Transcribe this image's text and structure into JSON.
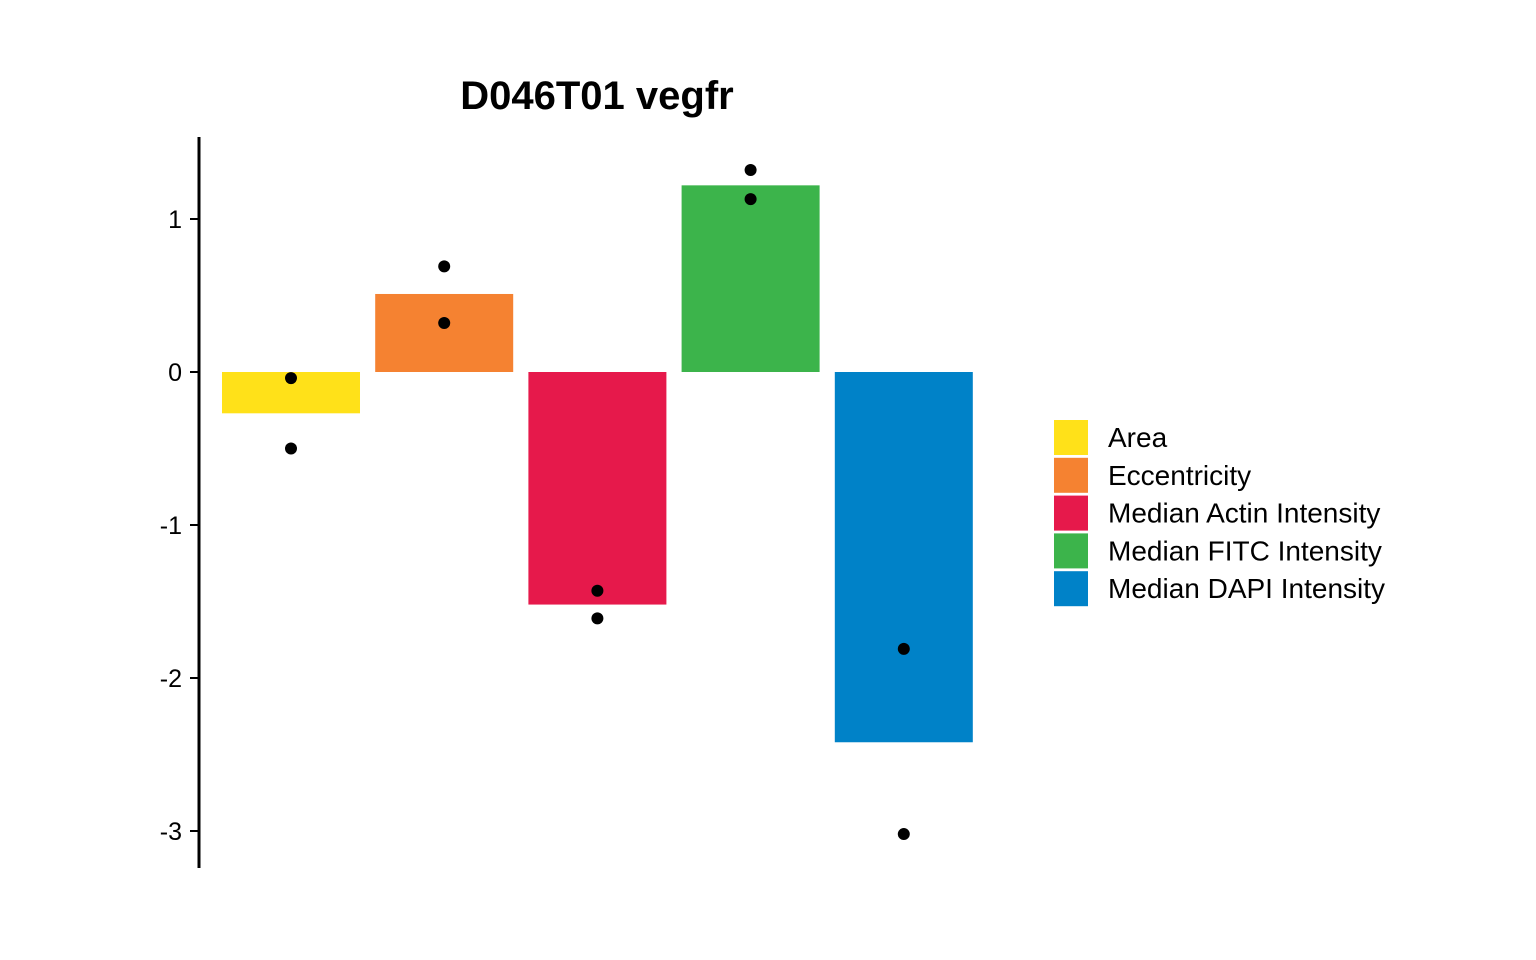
{
  "chart_data": {
    "type": "bar",
    "title": "D046T01 vegfr",
    "xlabel": "",
    "ylabel": "",
    "ylim": [
      -3.25,
      1.55
    ],
    "yticks": [
      1,
      0,
      -1,
      -2,
      -3
    ],
    "ytick_labels": [
      "1",
      "0",
      "-1",
      "-2",
      "-3"
    ],
    "grid": false,
    "legend_position": "right",
    "categories": [
      "Area",
      "Eccentricity",
      "Median Actin Intensity",
      "Median FITC Intensity",
      "Median DAPI Intensity"
    ],
    "values": [
      -0.27,
      0.51,
      -1.52,
      1.22,
      -2.42
    ],
    "points": [
      [
        -0.04,
        -0.5
      ],
      [
        0.69,
        0.32
      ],
      [
        -1.43,
        -1.61
      ],
      [
        1.32,
        1.13
      ],
      [
        -1.81,
        -3.02
      ]
    ],
    "colors": [
      "#FFE119",
      "#F58231",
      "#E6194B",
      "#3CB44B",
      "#0082C8"
    ]
  }
}
